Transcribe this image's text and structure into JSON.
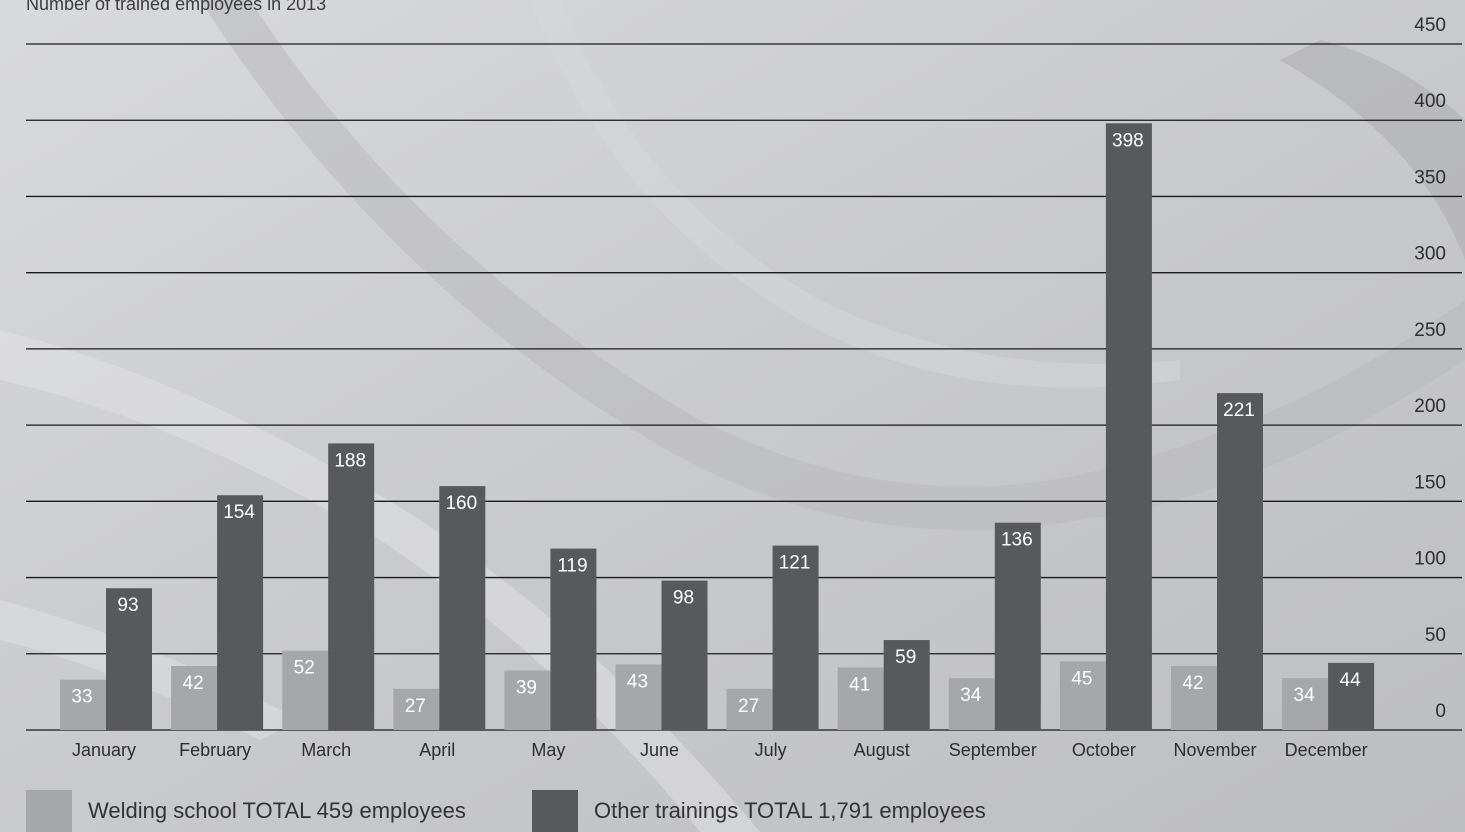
{
  "colors": {
    "welding": "#a5a7aa",
    "other": "#58595b",
    "grid": "#1a1a1a",
    "label_text": "#ffffff",
    "axis_text": "#2e2e2e"
  },
  "chart_data": {
    "type": "bar",
    "title": "Number of trained employees in 2013",
    "xlabel": "",
    "ylabel": "",
    "ylim": [
      0,
      450
    ],
    "yticks": [
      0,
      50,
      100,
      150,
      200,
      250,
      300,
      350,
      400,
      450
    ],
    "y_axis_position": "right",
    "grid": true,
    "legend_position": "bottom",
    "categories": [
      "January",
      "February",
      "March",
      "April",
      "May",
      "June",
      "July",
      "August",
      "September",
      "October",
      "November",
      "December"
    ],
    "series": [
      {
        "name": "Welding school TOTAL 459 employees",
        "color": "#a5a7aa",
        "values": [
          33,
          42,
          52,
          27,
          39,
          43,
          27,
          41,
          34,
          45,
          42,
          34
        ]
      },
      {
        "name": "Other trainings TOTAL 1,791 employees",
        "color": "#58595b",
        "values": [
          93,
          154,
          188,
          160,
          119,
          98,
          121,
          59,
          136,
          398,
          221,
          44
        ]
      }
    ]
  }
}
